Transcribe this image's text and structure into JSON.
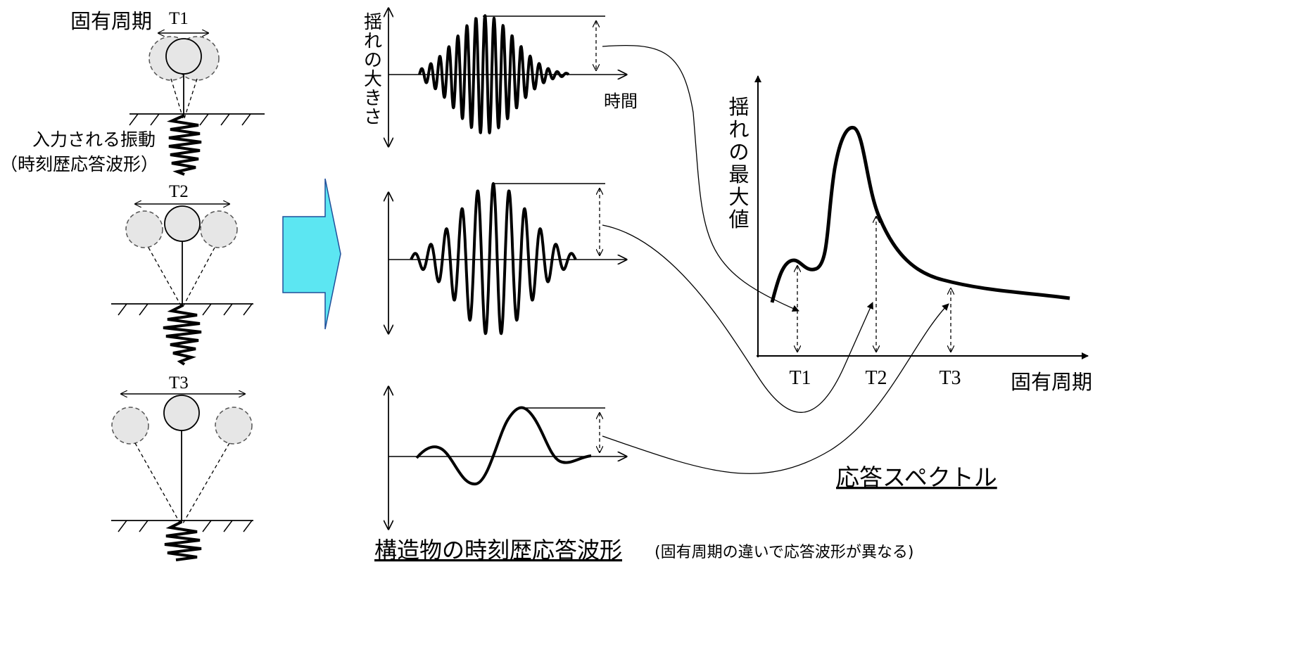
{
  "colors": {
    "line": "#000000",
    "bob_fill": "#e6e6e6",
    "arrow_fill": "#5ce6f2",
    "arrow_stroke": "#1f4f9a"
  },
  "left": {
    "title": "固有周期",
    "pendulums": [
      {
        "label": "T1"
      },
      {
        "label": "T2"
      },
      {
        "label": "T3"
      }
    ],
    "input_label_1": "入力される振動",
    "input_label_2": "（時刻歴応答波形）"
  },
  "middle": {
    "ylabel_chars": [
      "揺",
      "れ",
      "の",
      "大",
      "き",
      "さ"
    ],
    "xlabel": "時間",
    "caption_main": "構造物の時刻歴応答波形",
    "caption_sub": "(固有周期の違いで応答波形が異なる)"
  },
  "chart_data": {
    "type": "line",
    "title": "応答スペクトル",
    "xlabel": "固有周期",
    "ylabel": "揺れの最大値",
    "ylabel_chars": [
      "揺",
      "れ",
      "の",
      "最",
      "大",
      "値"
    ],
    "x_ticks": [
      "T1",
      "T2",
      "T3"
    ],
    "curve_shape": "small peak near T1, large peak between T1 and T2, decaying tail past T3",
    "grid": false
  }
}
